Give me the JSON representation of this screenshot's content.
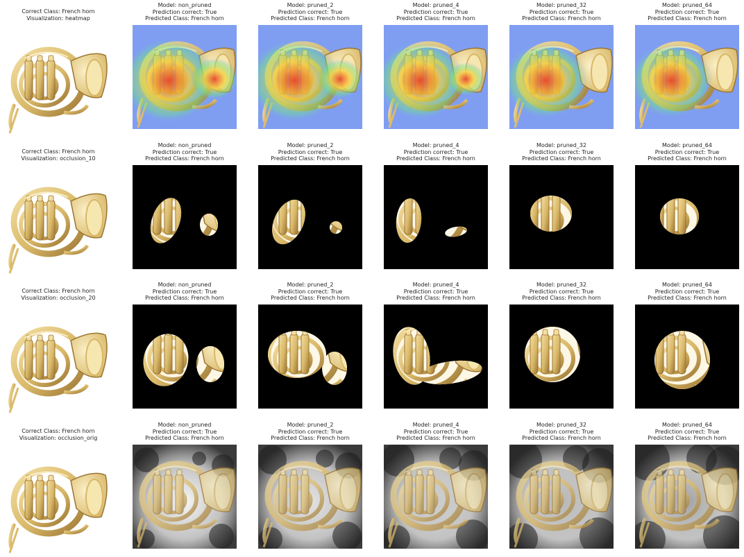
{
  "figure": {
    "rows": [
      {
        "correct_class": "Correct Class: French horn",
        "visualization": "Visualization: heatmap",
        "kind": "heatmap",
        "models": [
          {
            "model": "Model: non_pruned",
            "prediction": "Prediction correct: True",
            "predicted": "Predicted Class: French horn",
            "level": 1.0
          },
          {
            "model": "Model: pruned_2",
            "prediction": "Prediction correct: True",
            "predicted": "Predicted Class: French horn",
            "level": 0.95
          },
          {
            "model": "Model: pruned_4",
            "prediction": "Prediction correct: True",
            "predicted": "Predicted Class: French horn",
            "level": 0.8
          },
          {
            "model": "Model: pruned_32",
            "prediction": "Prediction correct: True",
            "predicted": "Predicted Class: French horn",
            "level": 0.7
          },
          {
            "model": "Model: pruned_64",
            "prediction": "Prediction correct: True",
            "predicted": "Predicted Class: French horn",
            "level": 0.65
          }
        ]
      },
      {
        "correct_class": "Correct Class: French horn",
        "visualization": "Visualization: occlusion_10",
        "kind": "occlusion_small",
        "models": [
          {
            "model": "Model: non_pruned",
            "prediction": "Prediction correct: True",
            "predicted": "Predicted Class: French horn"
          },
          {
            "model": "Model: pruned_2",
            "prediction": "Prediction correct: True",
            "predicted": "Predicted Class: French horn"
          },
          {
            "model": "Model: pruned_4",
            "prediction": "Prediction correct: True",
            "predicted": "Predicted Class: French horn"
          },
          {
            "model": "Model: pruned_32",
            "prediction": "Prediction correct: True",
            "predicted": "Predicted Class: French horn"
          },
          {
            "model": "Model: pruned_64",
            "prediction": "Prediction correct: True",
            "predicted": "Predicted Class: French horn"
          }
        ]
      },
      {
        "correct_class": "Correct Class: French horn",
        "visualization": "Visualization: occlusion_20",
        "kind": "occlusion_large",
        "models": [
          {
            "model": "Model: non_pruned",
            "prediction": "Prediction correct: True",
            "predicted": "Predicted Class: French horn"
          },
          {
            "model": "Model: pruned_2",
            "prediction": "Prediction correct: True",
            "predicted": "Predicted Class: French horn"
          },
          {
            "model": "Model: pruned_4",
            "prediction": "Prediction correct: True",
            "predicted": "Predicted Class: French horn"
          },
          {
            "model": "Model: pruned_32",
            "prediction": "Prediction correct: True",
            "predicted": "Predicted Class: French horn"
          },
          {
            "model": "Model: pruned_64",
            "prediction": "Prediction correct: True",
            "predicted": "Predicted Class: French horn"
          }
        ]
      },
      {
        "correct_class": "Correct Class: French horn",
        "visualization": "Visualization: occlusion_orig",
        "kind": "occlusion_orig",
        "models": [
          {
            "model": "Model: non_pruned",
            "prediction": "Prediction correct: True",
            "predicted": "Predicted Class: French horn"
          },
          {
            "model": "Model: pruned_2",
            "prediction": "Prediction correct: True",
            "predicted": "Predicted Class: French horn"
          },
          {
            "model": "Model: pruned_4",
            "prediction": "Prediction correct: True",
            "predicted": "Predicted Class: French horn"
          },
          {
            "model": "Model: pruned_32",
            "prediction": "Prediction correct: True",
            "predicted": "Predicted Class: French horn"
          },
          {
            "model": "Model: pruned_64",
            "prediction": "Prediction correct: True",
            "predicted": "Predicted Class: French horn"
          }
        ]
      }
    ]
  },
  "colors": {
    "brass_light": "#f3dfa3",
    "brass_mid": "#d9b868",
    "brass_dark": "#9a7432",
    "heat_background": "#7f9ef2",
    "heat_hot": "#e8412a",
    "heat_warm": "#f7d23c",
    "occlusion_black": "#000000"
  }
}
